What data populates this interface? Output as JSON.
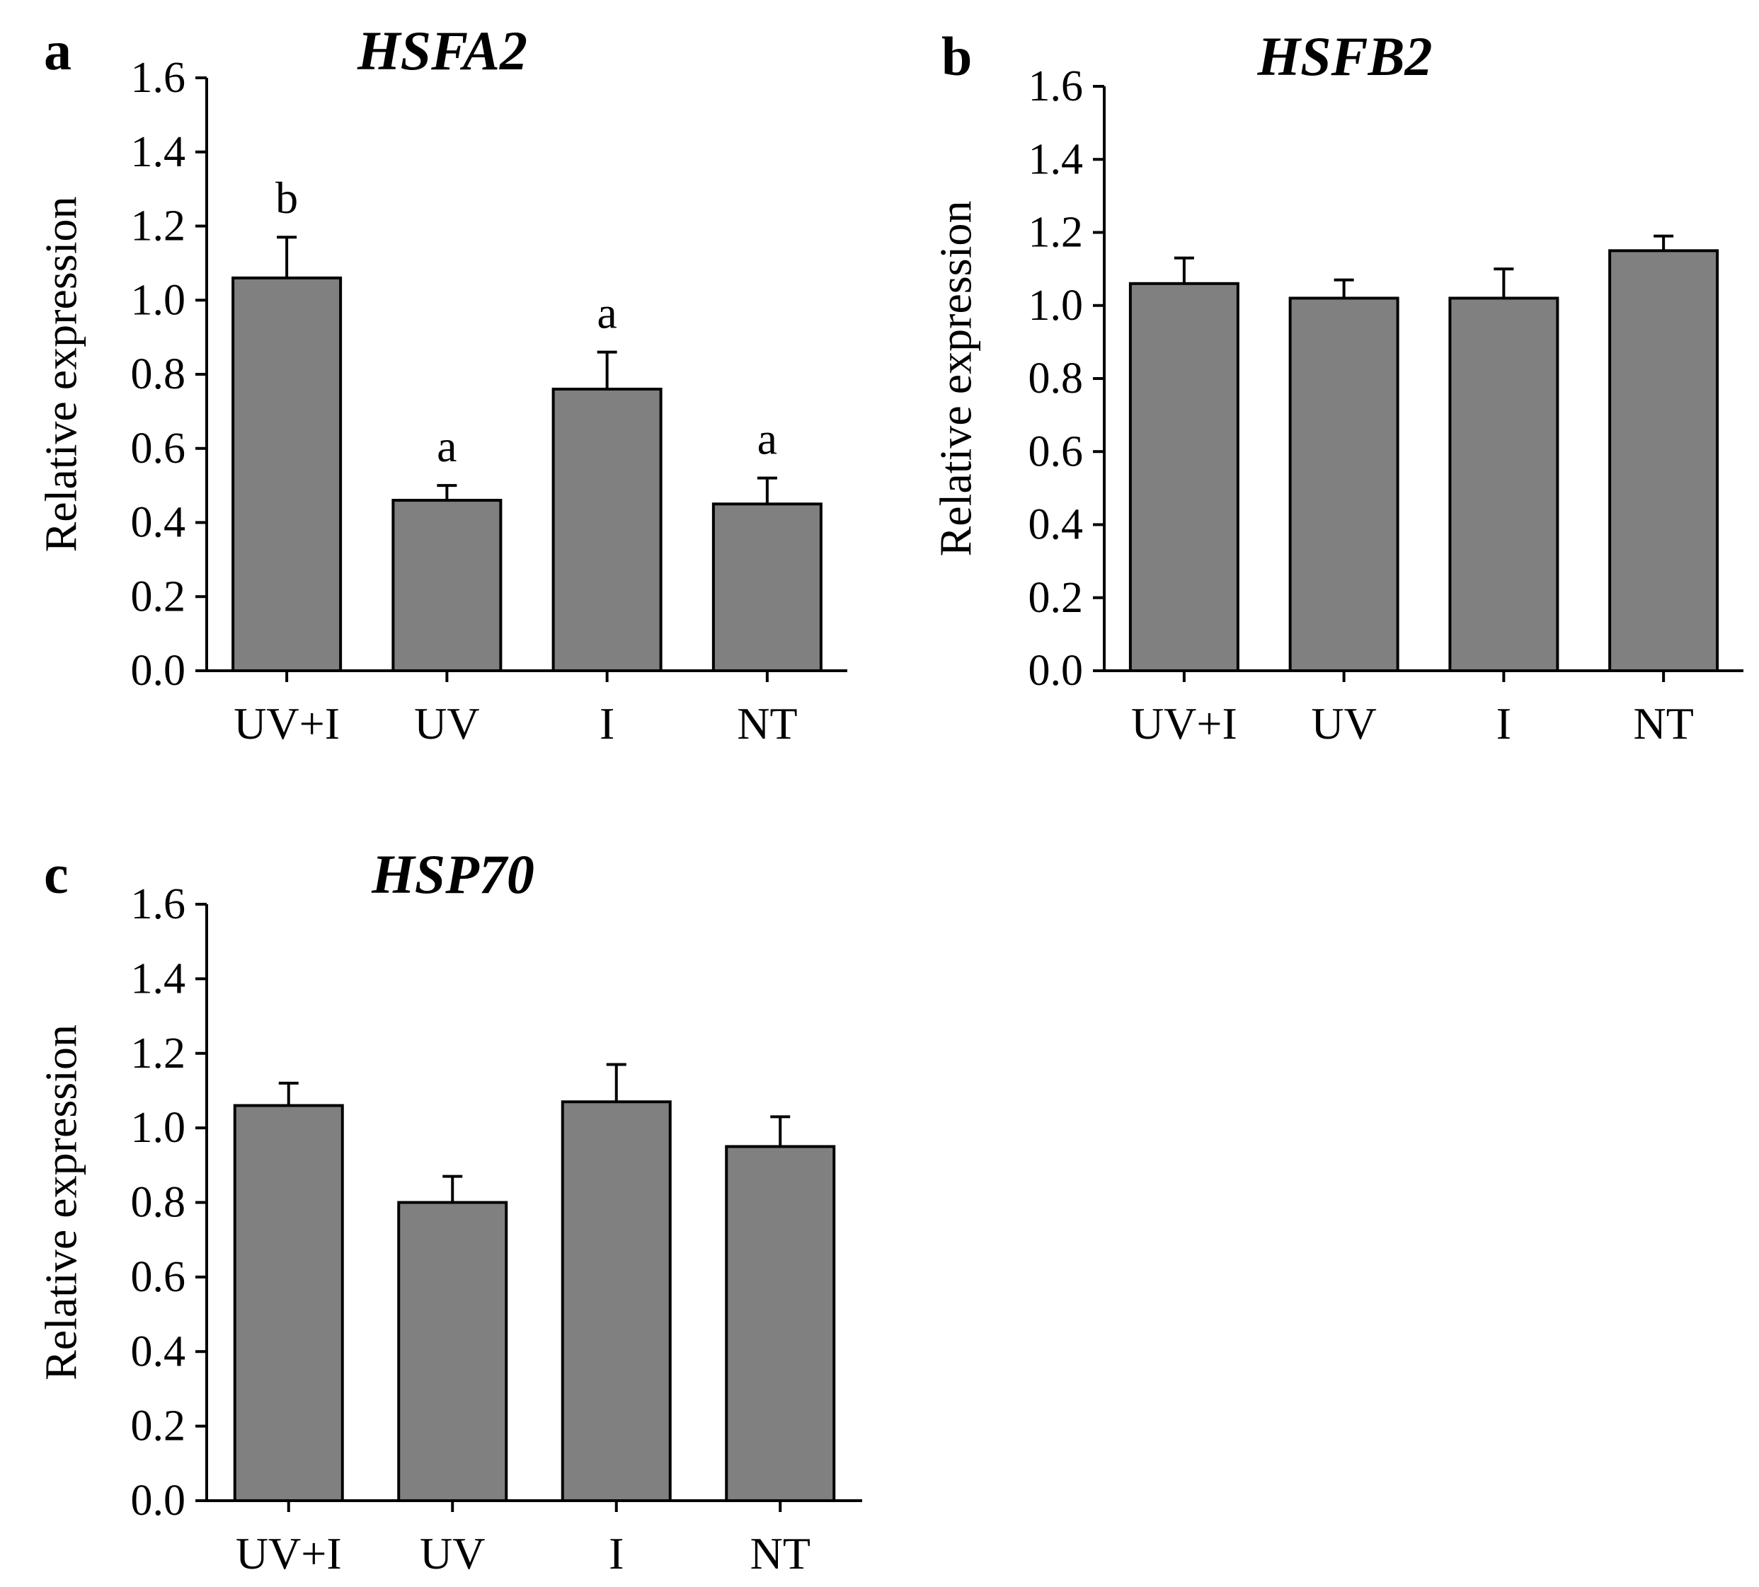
{
  "chart_data": [
    {
      "type": "bar",
      "panel": "a",
      "title": "HSFA2",
      "ylabel": "Relative expression",
      "xlabel": "",
      "categories": [
        "UV+I",
        "UV",
        "I",
        "NT"
      ],
      "values": [
        1.06,
        0.46,
        0.76,
        0.45
      ],
      "errors": [
        0.11,
        0.04,
        0.1,
        0.07
      ],
      "significance": [
        "b",
        "a",
        "a",
        "a"
      ],
      "ylim": [
        0,
        1.6
      ],
      "yticks": [
        "0.0",
        "0.2",
        "0.4",
        "0.6",
        "0.8",
        "1.0",
        "1.2",
        "1.4",
        "1.6"
      ],
      "bar_color": "#808080"
    },
    {
      "type": "bar",
      "panel": "b",
      "title": "HSFB2",
      "ylabel": "Relative expression",
      "xlabel": "",
      "categories": [
        "UV+I",
        "UV",
        "I",
        "NT"
      ],
      "values": [
        1.06,
        1.02,
        1.02,
        1.15
      ],
      "errors": [
        0.07,
        0.05,
        0.08,
        0.04
      ],
      "significance": [],
      "ylim": [
        0,
        1.6
      ],
      "yticks": [
        "0.0",
        "0.2",
        "0.4",
        "0.6",
        "0.8",
        "1.0",
        "1.2",
        "1.4",
        "1.6"
      ],
      "bar_color": "#808080"
    },
    {
      "type": "bar",
      "panel": "c",
      "title": "HSP70",
      "ylabel": "Relative expression",
      "xlabel": "",
      "categories": [
        "UV+I",
        "UV",
        "I",
        "NT"
      ],
      "values": [
        1.06,
        0.8,
        1.07,
        0.95
      ],
      "errors": [
        0.06,
        0.07,
        0.1,
        0.08
      ],
      "significance": [],
      "ylim": [
        0,
        1.6
      ],
      "yticks": [
        "0.0",
        "0.2",
        "0.4",
        "0.6",
        "0.8",
        "1.0",
        "1.2",
        "1.4",
        "1.6"
      ],
      "bar_color": "#808080"
    }
  ]
}
